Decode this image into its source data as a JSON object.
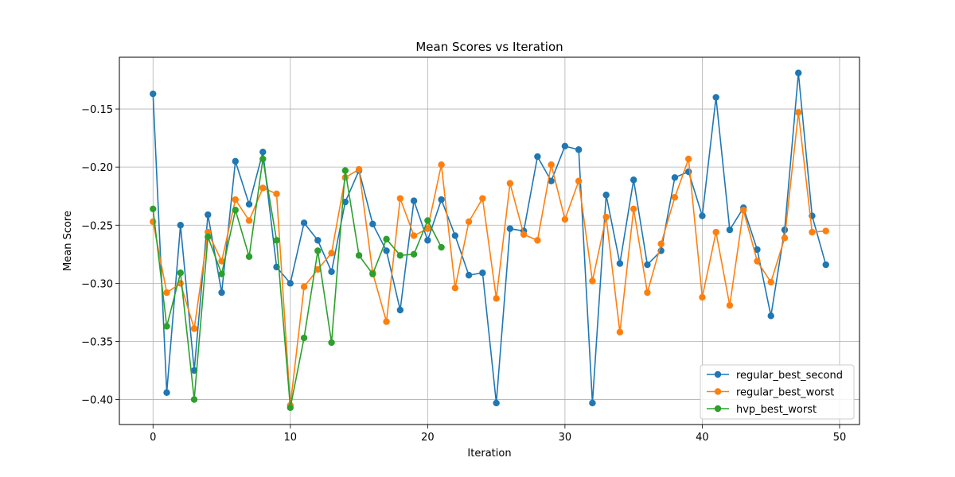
{
  "chart_data": {
    "type": "line",
    "title": "Mean Scores vs Iteration",
    "xlabel": "Iteration",
    "ylabel": "Mean Score",
    "xlim": [
      -2.45,
      51.45
    ],
    "ylim": [
      -0.4215,
      -0.1055
    ],
    "xticks": [
      0,
      10,
      20,
      30,
      40,
      50
    ],
    "yticks": [
      -0.4,
      -0.35,
      -0.3,
      -0.25,
      -0.2,
      -0.15
    ],
    "xtick_labels": [
      "0",
      "10",
      "20",
      "30",
      "40",
      "50"
    ],
    "ytick_labels": [
      "−0.40",
      "−0.35",
      "−0.30",
      "−0.25",
      "−0.20",
      "−0.15"
    ],
    "grid": true,
    "legend_position": "lower-right",
    "series": [
      {
        "name": "regular_best_second",
        "color": "#1f77b4",
        "x": [
          0,
          1,
          2,
          3,
          4,
          5,
          6,
          7,
          8,
          9,
          10,
          11,
          12,
          13,
          14,
          15,
          16,
          17,
          18,
          19,
          20,
          21,
          22,
          23,
          24,
          25,
          26,
          27,
          28,
          29,
          30,
          31,
          32,
          33,
          34,
          35,
          36,
          37,
          38,
          39,
          40,
          41,
          42,
          43,
          44,
          45,
          46,
          47,
          48,
          49
        ],
        "values": [
          -0.137,
          -0.394,
          -0.25,
          -0.375,
          -0.241,
          -0.308,
          -0.195,
          -0.232,
          -0.187,
          -0.286,
          -0.3,
          -0.248,
          -0.263,
          -0.29,
          -0.23,
          -0.203,
          -0.249,
          -0.272,
          -0.323,
          -0.229,
          -0.263,
          -0.228,
          -0.259,
          -0.293,
          -0.291,
          -0.403,
          -0.253,
          -0.255,
          -0.191,
          -0.212,
          -0.182,
          -0.185,
          -0.403,
          -0.224,
          -0.283,
          -0.211,
          -0.284,
          -0.272,
          -0.209,
          -0.204,
          -0.242,
          -0.14,
          -0.254,
          -0.235,
          -0.271,
          -0.328,
          -0.254,
          -0.119,
          -0.242,
          -0.284
        ]
      },
      {
        "name": "regular_best_worst",
        "color": "#ff7f0e",
        "x": [
          0,
          1,
          2,
          3,
          4,
          5,
          6,
          7,
          8,
          9,
          10,
          11,
          12,
          13,
          14,
          15,
          16,
          17,
          18,
          19,
          20,
          21,
          22,
          23,
          24,
          25,
          26,
          27,
          28,
          29,
          30,
          31,
          32,
          33,
          34,
          35,
          36,
          37,
          38,
          39,
          40,
          41,
          42,
          43,
          44,
          45,
          46,
          47,
          48,
          49
        ],
        "values": [
          -0.247,
          -0.308,
          -0.3,
          -0.339,
          -0.256,
          -0.281,
          -0.228,
          -0.246,
          -0.218,
          -0.223,
          -0.405,
          -0.303,
          -0.288,
          -0.274,
          -0.209,
          -0.202,
          -0.291,
          -0.333,
          -0.227,
          -0.259,
          -0.253,
          -0.198,
          -0.304,
          -0.247,
          -0.227,
          -0.313,
          -0.214,
          -0.258,
          -0.263,
          -0.198,
          -0.245,
          -0.212,
          -0.298,
          -0.243,
          -0.342,
          -0.236,
          -0.308,
          -0.266,
          -0.226,
          -0.193,
          -0.312,
          -0.256,
          -0.319,
          -0.237,
          -0.281,
          -0.299,
          -0.261,
          -0.153,
          -0.256,
          -0.255
        ]
      },
      {
        "name": "hvp_best_worst",
        "color": "#2ca02c",
        "x": [
          0,
          1,
          2,
          3,
          4,
          5,
          6,
          7,
          8,
          9,
          10,
          11,
          12,
          13,
          14,
          15,
          16,
          17,
          18,
          19,
          20,
          21
        ],
        "values": [
          -0.236,
          -0.337,
          -0.291,
          -0.4,
          -0.26,
          -0.292,
          -0.237,
          -0.277,
          -0.193,
          -0.263,
          -0.407,
          -0.347,
          -0.272,
          -0.351,
          -0.203,
          -0.276,
          -0.292,
          -0.262,
          -0.276,
          -0.275,
          -0.246,
          -0.269
        ]
      }
    ]
  }
}
